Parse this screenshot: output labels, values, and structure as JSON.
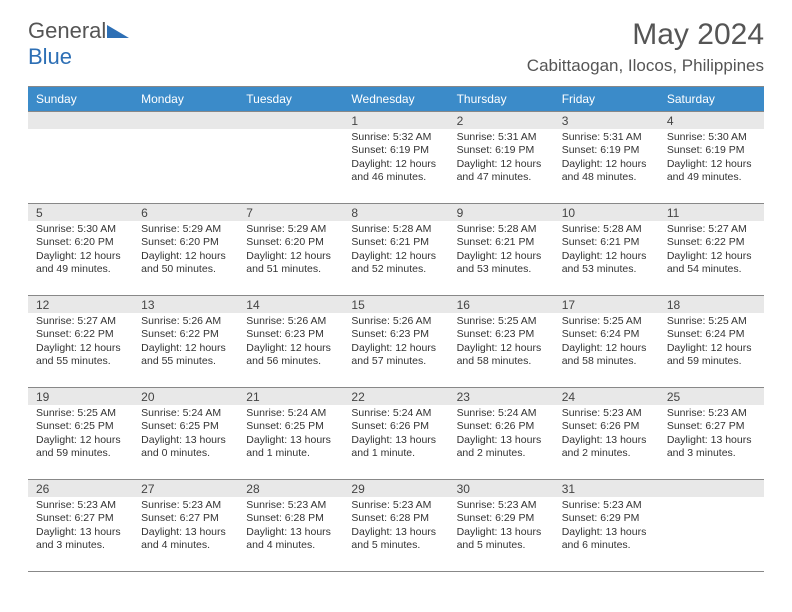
{
  "brand": {
    "part1": "General",
    "part2": "Blue"
  },
  "title": "May 2024",
  "subtitle": "Cabittaogan, Ilocos, Philippines",
  "colors": {
    "header_bg": "#3b8bc9",
    "header_fg": "#ffffff",
    "daynum_bg": "#e8e8e8",
    "rule": "#888888",
    "text": "#333333",
    "brand_gray": "#555555",
    "brand_blue": "#2d6fb5",
    "page_bg": "#ffffff"
  },
  "typography": {
    "base_family": "Arial",
    "title_size": 30,
    "subtitle_size": 17,
    "th_size": 12,
    "cell_size": 10.5,
    "logo_size": 22
  },
  "days": [
    "Sunday",
    "Monday",
    "Tuesday",
    "Wednesday",
    "Thursday",
    "Friday",
    "Saturday"
  ],
  "grid": [
    [
      {
        "blank": true
      },
      {
        "blank": true
      },
      {
        "blank": true
      },
      {
        "n": "1",
        "sr": "5:32 AM",
        "ss": "6:19 PM",
        "dl": "12 hours and 46 minutes."
      },
      {
        "n": "2",
        "sr": "5:31 AM",
        "ss": "6:19 PM",
        "dl": "12 hours and 47 minutes."
      },
      {
        "n": "3",
        "sr": "5:31 AM",
        "ss": "6:19 PM",
        "dl": "12 hours and 48 minutes."
      },
      {
        "n": "4",
        "sr": "5:30 AM",
        "ss": "6:19 PM",
        "dl": "12 hours and 49 minutes."
      }
    ],
    [
      {
        "n": "5",
        "sr": "5:30 AM",
        "ss": "6:20 PM",
        "dl": "12 hours and 49 minutes."
      },
      {
        "n": "6",
        "sr": "5:29 AM",
        "ss": "6:20 PM",
        "dl": "12 hours and 50 minutes."
      },
      {
        "n": "7",
        "sr": "5:29 AM",
        "ss": "6:20 PM",
        "dl": "12 hours and 51 minutes."
      },
      {
        "n": "8",
        "sr": "5:28 AM",
        "ss": "6:21 PM",
        "dl": "12 hours and 52 minutes."
      },
      {
        "n": "9",
        "sr": "5:28 AM",
        "ss": "6:21 PM",
        "dl": "12 hours and 53 minutes."
      },
      {
        "n": "10",
        "sr": "5:28 AM",
        "ss": "6:21 PM",
        "dl": "12 hours and 53 minutes."
      },
      {
        "n": "11",
        "sr": "5:27 AM",
        "ss": "6:22 PM",
        "dl": "12 hours and 54 minutes."
      }
    ],
    [
      {
        "n": "12",
        "sr": "5:27 AM",
        "ss": "6:22 PM",
        "dl": "12 hours and 55 minutes."
      },
      {
        "n": "13",
        "sr": "5:26 AM",
        "ss": "6:22 PM",
        "dl": "12 hours and 55 minutes."
      },
      {
        "n": "14",
        "sr": "5:26 AM",
        "ss": "6:23 PM",
        "dl": "12 hours and 56 minutes."
      },
      {
        "n": "15",
        "sr": "5:26 AM",
        "ss": "6:23 PM",
        "dl": "12 hours and 57 minutes."
      },
      {
        "n": "16",
        "sr": "5:25 AM",
        "ss": "6:23 PM",
        "dl": "12 hours and 58 minutes."
      },
      {
        "n": "17",
        "sr": "5:25 AM",
        "ss": "6:24 PM",
        "dl": "12 hours and 58 minutes."
      },
      {
        "n": "18",
        "sr": "5:25 AM",
        "ss": "6:24 PM",
        "dl": "12 hours and 59 minutes."
      }
    ],
    [
      {
        "n": "19",
        "sr": "5:25 AM",
        "ss": "6:25 PM",
        "dl": "12 hours and 59 minutes."
      },
      {
        "n": "20",
        "sr": "5:24 AM",
        "ss": "6:25 PM",
        "dl": "13 hours and 0 minutes."
      },
      {
        "n": "21",
        "sr": "5:24 AM",
        "ss": "6:25 PM",
        "dl": "13 hours and 1 minute."
      },
      {
        "n": "22",
        "sr": "5:24 AM",
        "ss": "6:26 PM",
        "dl": "13 hours and 1 minute."
      },
      {
        "n": "23",
        "sr": "5:24 AM",
        "ss": "6:26 PM",
        "dl": "13 hours and 2 minutes."
      },
      {
        "n": "24",
        "sr": "5:23 AM",
        "ss": "6:26 PM",
        "dl": "13 hours and 2 minutes."
      },
      {
        "n": "25",
        "sr": "5:23 AM",
        "ss": "6:27 PM",
        "dl": "13 hours and 3 minutes."
      }
    ],
    [
      {
        "n": "26",
        "sr": "5:23 AM",
        "ss": "6:27 PM",
        "dl": "13 hours and 3 minutes."
      },
      {
        "n": "27",
        "sr": "5:23 AM",
        "ss": "6:27 PM",
        "dl": "13 hours and 4 minutes."
      },
      {
        "n": "28",
        "sr": "5:23 AM",
        "ss": "6:28 PM",
        "dl": "13 hours and 4 minutes."
      },
      {
        "n": "29",
        "sr": "5:23 AM",
        "ss": "6:28 PM",
        "dl": "13 hours and 5 minutes."
      },
      {
        "n": "30",
        "sr": "5:23 AM",
        "ss": "6:29 PM",
        "dl": "13 hours and 5 minutes."
      },
      {
        "n": "31",
        "sr": "5:23 AM",
        "ss": "6:29 PM",
        "dl": "13 hours and 6 minutes."
      },
      {
        "blank": true
      }
    ]
  ],
  "labels": {
    "sunrise": "Sunrise:",
    "sunset": "Sunset:",
    "daylight": "Daylight:"
  }
}
